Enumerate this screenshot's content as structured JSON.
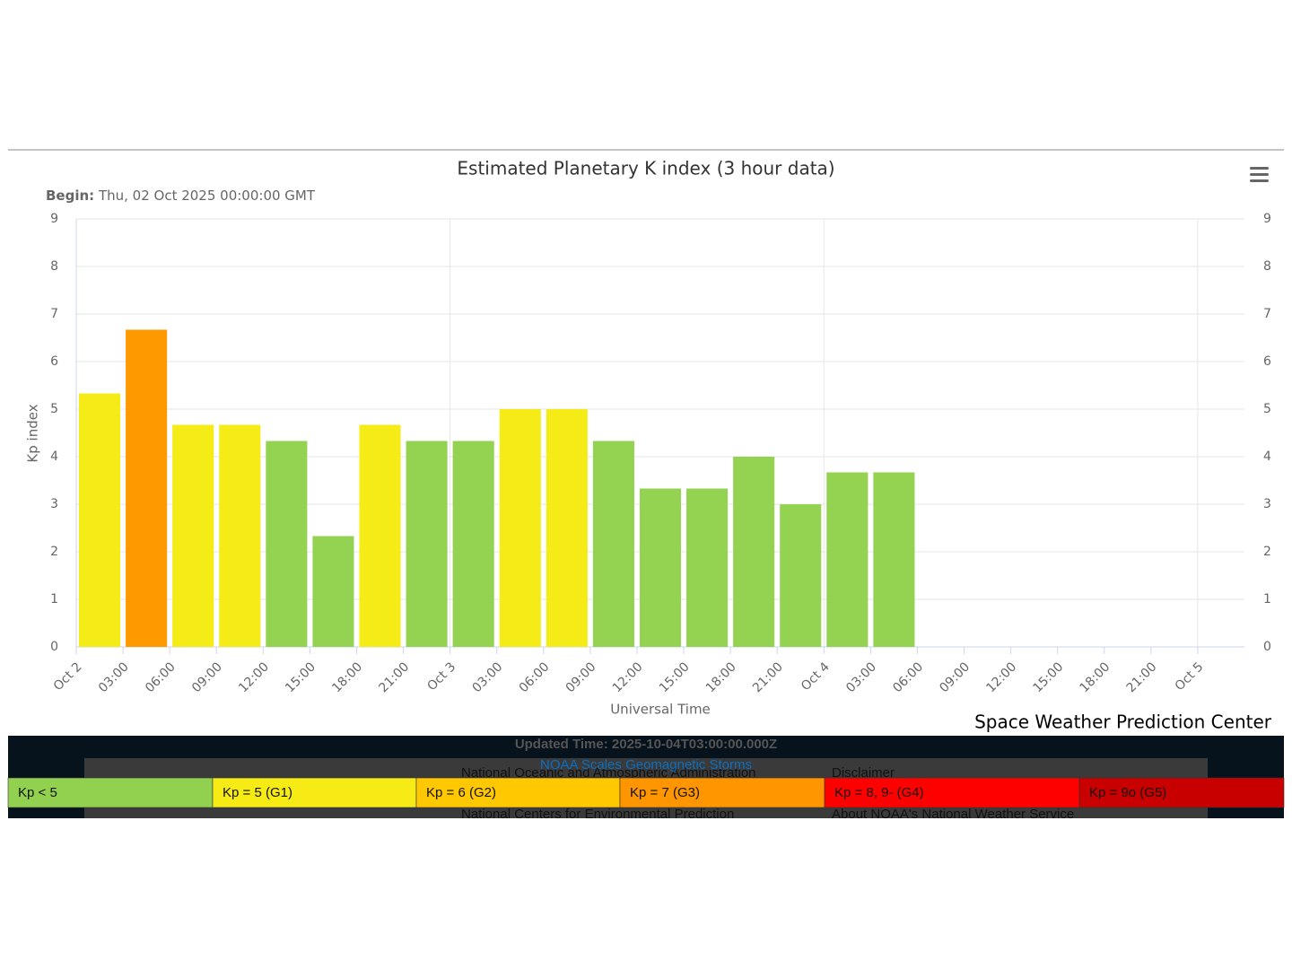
{
  "chart_data": {
    "type": "bar",
    "title": "Estimated Planetary K index (3 hour data)",
    "subtitle_label": "Begin:",
    "subtitle": "Thu, 02 Oct 2025 00:00:00 GMT",
    "ylabel": "Kp index",
    "xlabel": "Universal Time",
    "credit": "Space Weather Prediction Center",
    "xtick_labels": [
      "Oct 2",
      "03:00",
      "06:00",
      "09:00",
      "12:00",
      "15:00",
      "18:00",
      "21:00",
      "Oct 3",
      "03:00",
      "06:00",
      "09:00",
      "12:00",
      "15:00",
      "18:00",
      "21:00",
      "Oct 4",
      "03:00",
      "06:00",
      "09:00",
      "12:00",
      "15:00",
      "18:00",
      "21:00",
      "Oct 5"
    ],
    "values": [
      5.33,
      6.67,
      4.67,
      4.67,
      4.33,
      2.33,
      4.67,
      4.33,
      4.33,
      5.0,
      5.0,
      4.33,
      3.33,
      3.33,
      4.0,
      3.0,
      3.67,
      3.67
    ],
    "colors": [
      "#f5eb17",
      "#ff9900",
      "#f5eb17",
      "#f5eb17",
      "#94d252",
      "#94d252",
      "#f5eb17",
      "#94d252",
      "#94d252",
      "#f5eb17",
      "#f5eb17",
      "#94d252",
      "#94d252",
      "#94d252",
      "#94d252",
      "#94d252",
      "#94d252",
      "#94d252"
    ],
    "ylim": [
      0,
      9
    ],
    "yticks": [
      0,
      1,
      2,
      3,
      4,
      5,
      6,
      7,
      8,
      9
    ],
    "y2lim": [
      0,
      9
    ],
    "y2ticks": [
      0,
      1,
      2,
      3,
      4,
      5,
      6,
      7,
      8,
      9
    ],
    "grid": true,
    "legend": [
      {
        "label": "Kp < 5",
        "color": "#92d050"
      },
      {
        "label": "Kp = 5 (G1)",
        "color": "#f6eb14"
      },
      {
        "label": "Kp = 6 (G2)",
        "color": "#ffc800"
      },
      {
        "label": "Kp = 7 (G3)",
        "color": "#ff9600"
      },
      {
        "label": "Kp = 8, 9- (G4)",
        "color": "#ff0000"
      },
      {
        "label": "Kp = 9o (G5)",
        "color": "#c80000"
      }
    ]
  },
  "footer": {
    "updated": "Updated Time: 2025-10-04T03:00:00.000Z",
    "scales_link": "NOAA Scales Geomagnetic Storms",
    "noaa": "National Oceanic and Atmospheric Administration",
    "ncep": "National Centers for Environmental Prediction",
    "disclaimer": "Disclaimer",
    "about": "About NOAA's National Weather Service"
  }
}
